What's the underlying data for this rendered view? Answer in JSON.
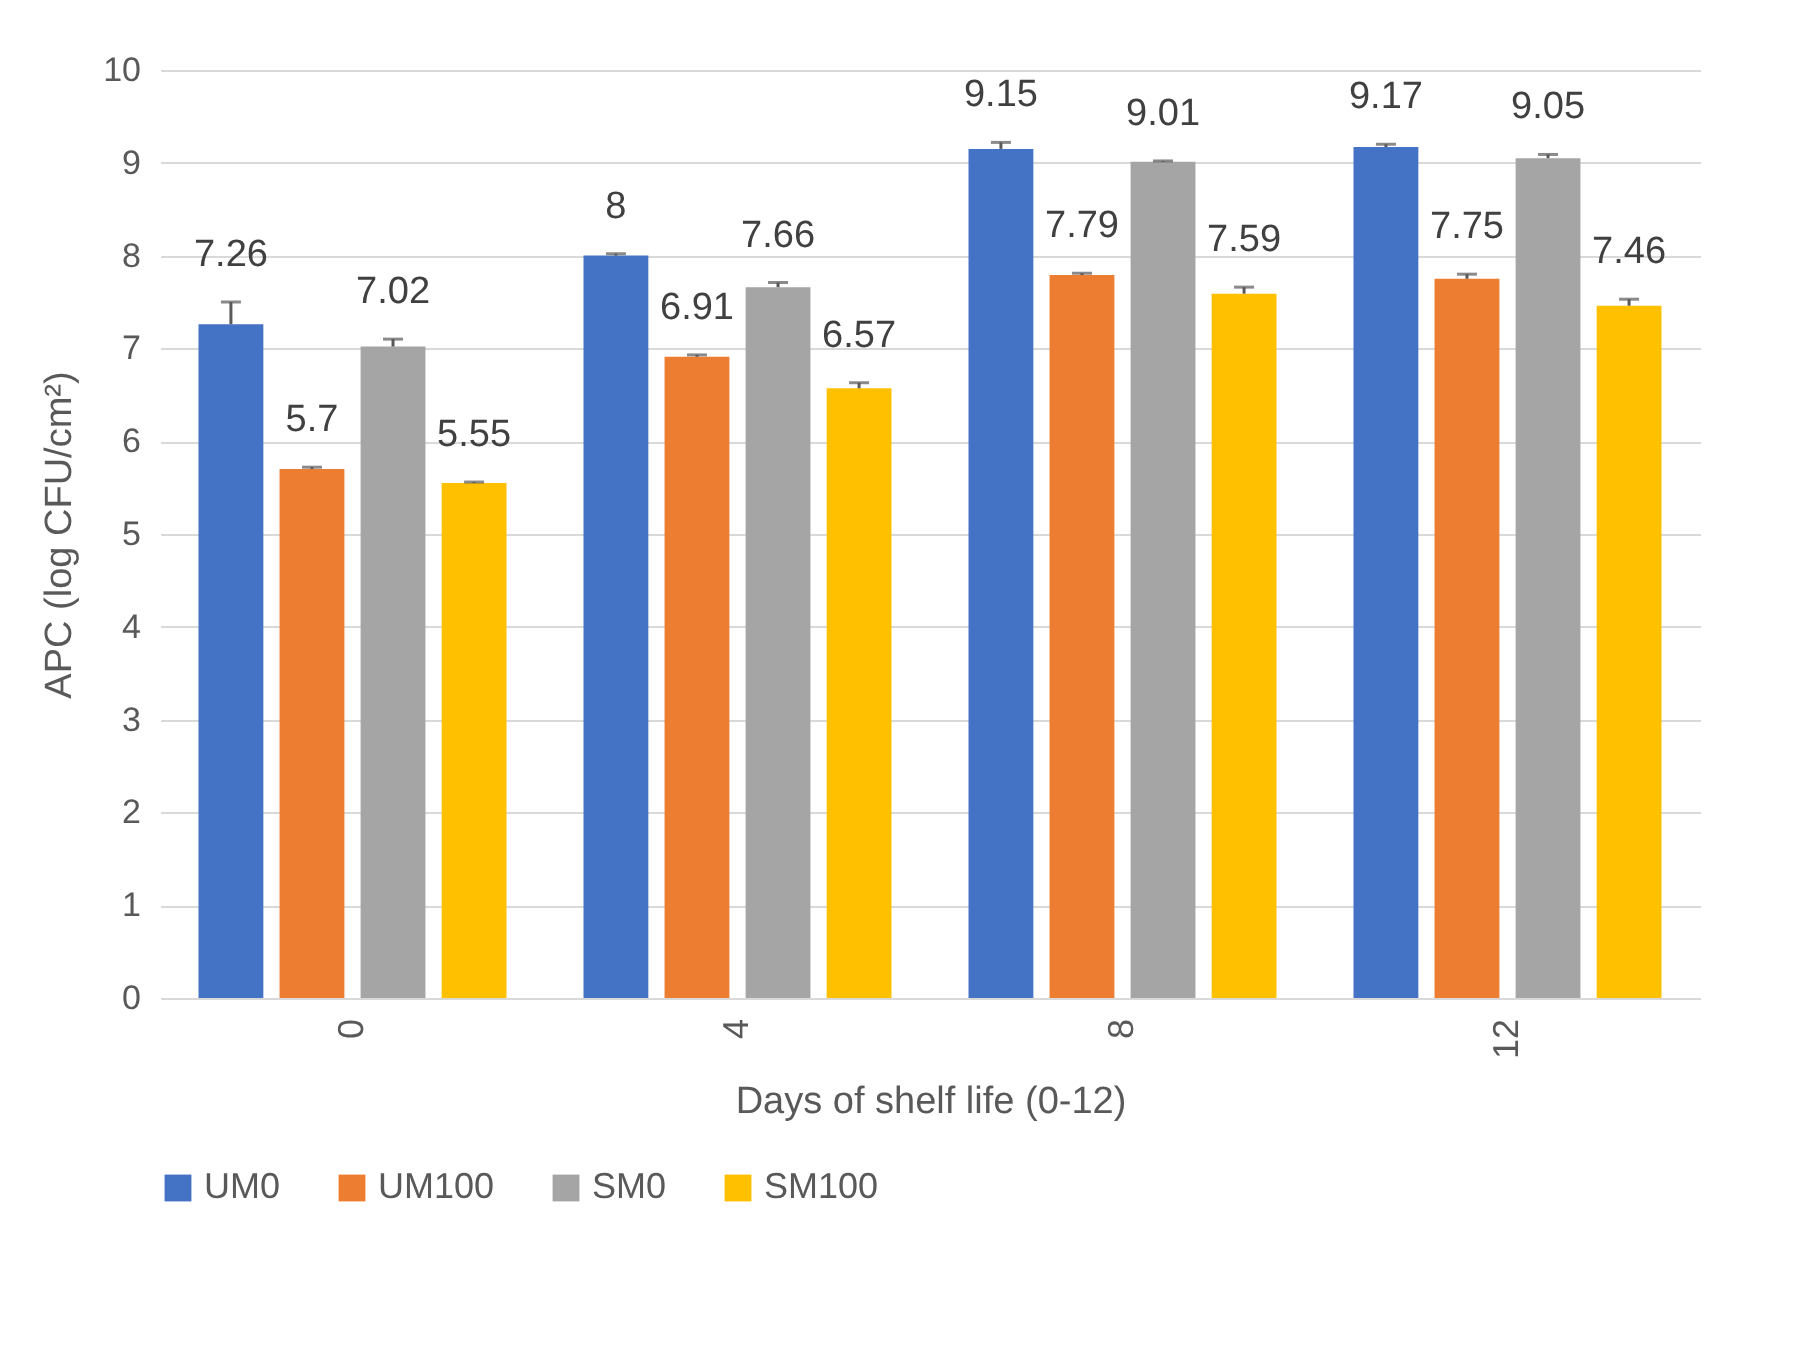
{
  "chart_data": {
    "type": "bar",
    "xlabel": "Days of shelf life (0-12)",
    "ylabel": "APC (log CFU/cm²)",
    "categories": [
      "0",
      "4",
      "8",
      "12"
    ],
    "series": [
      {
        "name": "UM0",
        "color": "#4472c4",
        "values": [
          7.26,
          8,
          9.15,
          9.17
        ],
        "errors": [
          [
            7.26,
            7.5
          ],
          [
            8,
            8.02
          ],
          [
            9.15,
            9.22
          ],
          [
            9.17,
            9.2
          ]
        ]
      },
      {
        "name": "UM100",
        "color": "#ed7d31",
        "values": [
          5.7,
          6.91,
          7.79,
          7.75
        ],
        "errors": [
          [
            5.7,
            5.72
          ],
          [
            6.91,
            6.93
          ],
          [
            7.79,
            7.81
          ],
          [
            7.75,
            7.8
          ]
        ]
      },
      {
        "name": "SM0",
        "color": "#a5a5a5",
        "values": [
          7.02,
          7.66,
          9.01,
          9.05
        ],
        "errors": [
          [
            7.02,
            7.1
          ],
          [
            7.66,
            7.71
          ],
          [
            9.01,
            9.02
          ],
          [
            9.05,
            9.09
          ]
        ]
      },
      {
        "name": "SM100",
        "color": "#ffc000",
        "values": [
          5.55,
          6.57,
          7.59,
          7.46
        ],
        "errors": [
          [
            5.55,
            5.56
          ],
          [
            6.57,
            6.63
          ],
          [
            7.59,
            7.66
          ],
          [
            7.46,
            7.53
          ]
        ]
      }
    ],
    "ylim": [
      0,
      10
    ],
    "yticks": [
      0,
      1,
      2,
      3,
      4,
      5,
      6,
      7,
      8,
      9,
      10
    ],
    "grid": "y",
    "legend": "bottom",
    "data_labels": true
  }
}
